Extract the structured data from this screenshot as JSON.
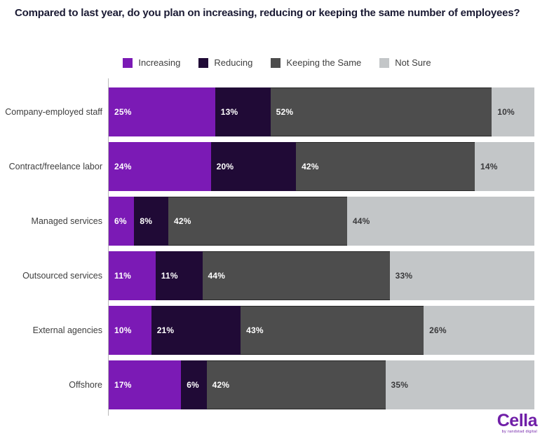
{
  "title": "Compared to last year, do you plan on increasing, reducing or keeping the same number of employees?",
  "chart_data": {
    "type": "bar",
    "orientation": "horizontal",
    "stacked": true,
    "unit": "%",
    "xlim": [
      0,
      100
    ],
    "legend_position": "top-center",
    "data_labels": "inside-start",
    "categories": [
      "Company-employed staff",
      "Contract/freelance labor",
      "Managed services",
      "Outsourced services",
      "External agencies",
      "Offshore"
    ],
    "series": [
      {
        "name": "Increasing",
        "color": "#7b1ab5",
        "label_color": "#ffffff",
        "values": [
          25,
          24,
          6,
          11,
          10,
          17
        ]
      },
      {
        "name": "Reducing",
        "color": "#200a36",
        "label_color": "#ffffff",
        "values": [
          13,
          20,
          8,
          11,
          21,
          6
        ]
      },
      {
        "name": "Keeping the Same",
        "color": "#4d4d4d",
        "label_color": "#ffffff",
        "values": [
          52,
          42,
          42,
          44,
          43,
          42
        ]
      },
      {
        "name": "Not Sure",
        "color": "#c3c6c8",
        "label_color": "#3a3a3c",
        "values": [
          10,
          14,
          44,
          33,
          26,
          35
        ]
      }
    ]
  },
  "branding": {
    "logo_text": "Cella",
    "logo_tagline": "by randstad digital",
    "logo_color": "#701fa8"
  }
}
